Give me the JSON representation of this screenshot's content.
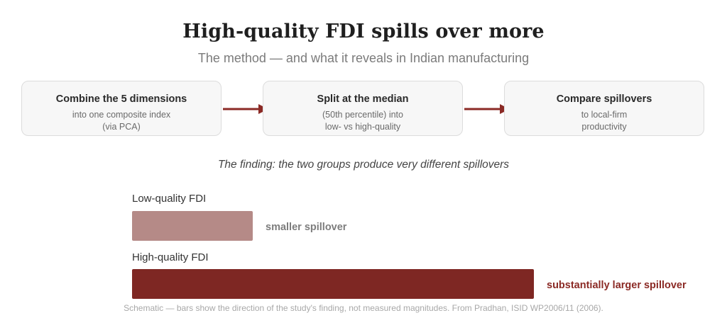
{
  "title": "High-quality FDI spills over more",
  "subtitle": "The method — and what it reveals in Indian manufacturing",
  "steps": [
    {
      "title": "Combine the 5 dimensions",
      "desc": "into one composite index\n(via PCA)"
    },
    {
      "title": "Split at the median",
      "desc": "(50th percentile) into\nlow- vs high-quality"
    },
    {
      "title": "Compare spillovers",
      "desc": "to local-firm\nproductivity"
    }
  ],
  "finding": "The finding: the two groups produce very different spillovers",
  "groups": [
    {
      "label": "Low-quality FDI",
      "note": "smaller spillover",
      "color": "#b58a87",
      "note_color": "#7d7d7d",
      "relative_value": 0.3
    },
    {
      "label": "High-quality FDI",
      "note": "substantially larger spillover",
      "color": "#7e2723",
      "note_color": "#8b2a25",
      "relative_value": 1.0
    }
  ],
  "colors": {
    "arrow": "#8b2a25",
    "box_border": "#dcdcdc",
    "box_fill": "#f7f7f7"
  },
  "footnote": "Schematic — bars show the direction of the study's finding, not measured magnitudes. From Pradhan, ISID WP2006/11 (2006)."
}
